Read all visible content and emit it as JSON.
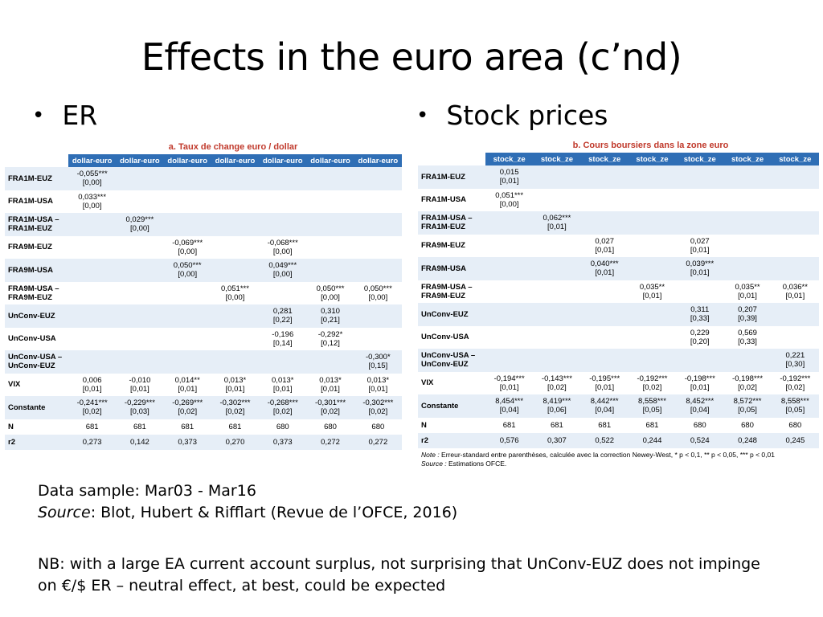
{
  "title": "Effects in the euro area (c’nd)",
  "bullets": {
    "er": "ER",
    "stock": "Stock prices"
  },
  "er_table": {
    "title": "a. Taux de change euro / dollar",
    "columns": [
      "dollar-euro",
      "dollar-euro",
      "dollar-euro",
      "dollar-euro",
      "dollar-euro",
      "dollar-euro",
      "dollar-euro"
    ],
    "rows": [
      {
        "label": [
          "FRA1M-EUZ"
        ],
        "cells": [
          [
            "-0,055***",
            "[0,00]"
          ],
          null,
          null,
          null,
          null,
          null,
          null
        ]
      },
      {
        "label": [
          "FRA1M-USA"
        ],
        "cells": [
          [
            "0,033***",
            "[0,00]"
          ],
          null,
          null,
          null,
          null,
          null,
          null
        ]
      },
      {
        "label": [
          "FRA1M-USA –",
          "FRA1M-EUZ"
        ],
        "cells": [
          null,
          [
            "0,029***",
            "[0,00]"
          ],
          null,
          null,
          null,
          null,
          null
        ]
      },
      {
        "label": [
          "FRA9M-EUZ"
        ],
        "cells": [
          null,
          null,
          [
            "-0,069***",
            "[0,00]"
          ],
          null,
          [
            "-0,068***",
            "[0,00]"
          ],
          null,
          null
        ]
      },
      {
        "label": [
          "FRA9M-USA"
        ],
        "cells": [
          null,
          null,
          [
            "0,050***",
            "[0,00]"
          ],
          null,
          [
            "0,049***",
            "[0,00]"
          ],
          null,
          null
        ]
      },
      {
        "label": [
          "FRA9M-USA –",
          "FRA9M-EUZ"
        ],
        "cells": [
          null,
          null,
          null,
          [
            "0,051***",
            "[0,00]"
          ],
          null,
          [
            "0,050***",
            "[0,00]"
          ],
          [
            "0,050***",
            "[0,00]"
          ]
        ]
      },
      {
        "label": [
          "UnConv-EUZ"
        ],
        "cells": [
          null,
          null,
          null,
          null,
          [
            "0,281",
            "[0,22]"
          ],
          [
            "0,310",
            "[0,21]"
          ],
          null
        ]
      },
      {
        "label": [
          "UnConv-USA"
        ],
        "cells": [
          null,
          null,
          null,
          null,
          [
            "-0,196",
            "[0,14]"
          ],
          [
            "-0,292*",
            "[0,12]"
          ],
          null
        ]
      },
      {
        "label": [
          "UnConv-USA –",
          "UnConv-EUZ"
        ],
        "cells": [
          null,
          null,
          null,
          null,
          null,
          null,
          [
            "-0,300*",
            "[0,15]"
          ]
        ]
      },
      {
        "label": [
          "VIX"
        ],
        "cells": [
          [
            "0,006",
            "[0,01]"
          ],
          [
            "-0,010",
            "[0,01]"
          ],
          [
            "0,014**",
            "[0,01]"
          ],
          [
            "0,013*",
            "[0,01]"
          ],
          [
            "0,013*",
            "[0,01]"
          ],
          [
            "0,013*",
            "[0,01]"
          ],
          [
            "0,013*",
            "[0,01]"
          ]
        ]
      },
      {
        "label": [
          "Constante"
        ],
        "cells": [
          [
            "-0,241***",
            "[0,02]"
          ],
          [
            "-0,229***",
            "[0,03]"
          ],
          [
            "-0,269***",
            "[0,02]"
          ],
          [
            "-0,302***",
            "[0,02]"
          ],
          [
            "-0,268***",
            "[0,02]"
          ],
          [
            "-0,301***",
            "[0,02]"
          ],
          [
            "-0,302***",
            "[0,02]"
          ]
        ]
      },
      {
        "label": [
          "N"
        ],
        "small": true,
        "cells": [
          [
            "681"
          ],
          [
            "681"
          ],
          [
            "681"
          ],
          [
            "681"
          ],
          [
            "680"
          ],
          [
            "680"
          ],
          [
            "680"
          ]
        ]
      },
      {
        "label": [
          "r2"
        ],
        "small": true,
        "cells": [
          [
            "0,273"
          ],
          [
            "0,142"
          ],
          [
            "0,373"
          ],
          [
            "0,270"
          ],
          [
            "0,373"
          ],
          [
            "0,272"
          ],
          [
            "0,272"
          ]
        ]
      }
    ]
  },
  "stock_table": {
    "title": "b. Cours boursiers dans la zone euro",
    "columns": [
      "stock_ze",
      "stock_ze",
      "stock_ze",
      "stock_ze",
      "stock_ze",
      "stock_ze",
      "stock_ze"
    ],
    "rows": [
      {
        "label": [
          "FRA1M-EUZ"
        ],
        "cells": [
          [
            "0,015",
            "[0,01]"
          ],
          null,
          null,
          null,
          null,
          null,
          null
        ]
      },
      {
        "label": [
          "FRA1M-USA"
        ],
        "cells": [
          [
            "0,051***",
            "[0,00]"
          ],
          null,
          null,
          null,
          null,
          null,
          null
        ]
      },
      {
        "label": [
          "FRA1M-USA –",
          "FRA1M-EUZ"
        ],
        "cells": [
          null,
          [
            "0,062***",
            "[0,01]"
          ],
          null,
          null,
          null,
          null,
          null
        ]
      },
      {
        "label": [
          "FRA9M-EUZ"
        ],
        "cells": [
          null,
          null,
          [
            "0,027",
            "[0,01]"
          ],
          null,
          [
            "0,027",
            "[0,01]"
          ],
          null,
          null
        ]
      },
      {
        "label": [
          "FRA9M-USA"
        ],
        "cells": [
          null,
          null,
          [
            "0,040***",
            "[0,01]"
          ],
          null,
          [
            "0,039***",
            "[0,01]"
          ],
          null,
          null
        ]
      },
      {
        "label": [
          "FRA9M-USA –",
          "FRA9M-EUZ"
        ],
        "cells": [
          null,
          null,
          null,
          [
            "0,035**",
            "[0,01]"
          ],
          null,
          [
            "0,035**",
            "[0,01]"
          ],
          [
            "0,036**",
            "[0,01]"
          ]
        ]
      },
      {
        "label": [
          "UnConv-EUZ"
        ],
        "cells": [
          null,
          null,
          null,
          null,
          [
            "0,311",
            "[0,33]"
          ],
          [
            "0,207",
            "[0,39]"
          ],
          null
        ]
      },
      {
        "label": [
          "UnConv-USA"
        ],
        "cells": [
          null,
          null,
          null,
          null,
          [
            "0,229",
            "[0,20]"
          ],
          [
            "0,569",
            "[0,33]"
          ],
          null
        ]
      },
      {
        "label": [
          "UnConv-USA –",
          "UnConv-EUZ"
        ],
        "cells": [
          null,
          null,
          null,
          null,
          null,
          null,
          [
            "0,221",
            "[0,30]"
          ]
        ]
      },
      {
        "label": [
          "VIX"
        ],
        "cells": [
          [
            "-0,194***",
            "[0,01]"
          ],
          [
            "-0,143***",
            "[0,02]"
          ],
          [
            "-0,195***",
            "[0,01]"
          ],
          [
            "-0,192***",
            "[0,02]"
          ],
          [
            "-0,198***",
            "[0,01]"
          ],
          [
            "-0,198***",
            "[0,02]"
          ],
          [
            "-0,192***",
            "[0,02]"
          ]
        ]
      },
      {
        "label": [
          "Constante"
        ],
        "cells": [
          [
            "8,454***",
            "[0,04]"
          ],
          [
            "8,419***",
            "[0,06]"
          ],
          [
            "8,442***",
            "[0,04]"
          ],
          [
            "8,558***",
            "[0,05]"
          ],
          [
            "8,452***",
            "[0,04]"
          ],
          [
            "8,572***",
            "[0,05]"
          ],
          [
            "8,558***",
            "[0,05]"
          ]
        ]
      },
      {
        "label": [
          "N"
        ],
        "small": true,
        "cells": [
          [
            "681"
          ],
          [
            "681"
          ],
          [
            "681"
          ],
          [
            "681"
          ],
          [
            "680"
          ],
          [
            "680"
          ],
          [
            "680"
          ]
        ]
      },
      {
        "label": [
          "r2"
        ],
        "small": true,
        "cells": [
          [
            "0,576"
          ],
          [
            "0,307"
          ],
          [
            "0,522"
          ],
          [
            "0,244"
          ],
          [
            "0,524"
          ],
          [
            "0,248"
          ],
          [
            "0,245"
          ]
        ]
      }
    ],
    "note_label": "Note :",
    "note_text": " Erreur-standard entre parenthèses, calculée avec la correction Newey-West, * p < 0,1, ** p < 0,05, *** p < 0,01",
    "source_label": "Source :",
    "source_text": " Estimations OFCE."
  },
  "footer": {
    "data_sample": "Data sample: Mar03 - Mar16",
    "source_label": "Source",
    "source_text": ": Blot, Hubert & Rifflart (Revue de l’OFCE, 2016)",
    "nb_line1": "NB: with a large EA current account surplus, not surprising that UnConv-EUZ does not impinge",
    "nb_line2": "on €/$ ER – neutral effect, at best, could be expected"
  },
  "colors": {
    "header_blue": "#2f6eb5",
    "row_shade": "#e6eef7",
    "panel_title_red": "#c0392b"
  }
}
